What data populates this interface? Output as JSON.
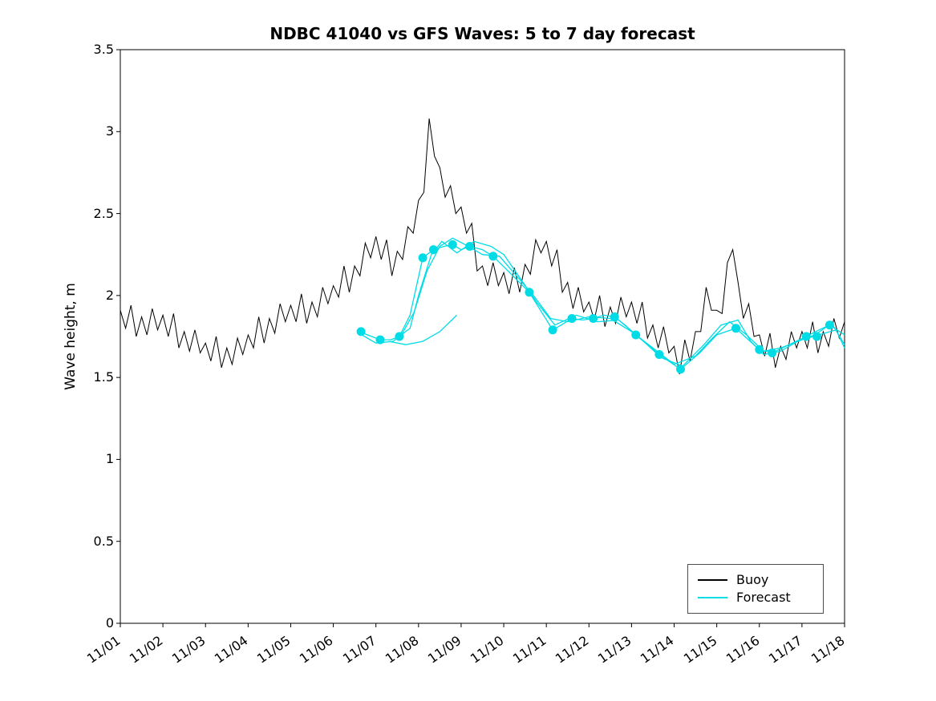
{
  "colors": {
    "buoy": "#000000",
    "forecast": "#00DCE6",
    "background": "#FFFFFF",
    "axes": "#000000"
  },
  "legend": {
    "position": "lower right",
    "items": [
      {
        "label": "Buoy",
        "color": "#000000"
      },
      {
        "label": "Forecast",
        "color": "#00DCE6"
      }
    ]
  },
  "chart_data": {
    "type": "line",
    "title": "NDBC 41040 vs GFS Waves: 5 to 7 day forecast",
    "xlabel": "",
    "ylabel": "Wave height, m",
    "x_unit": "date (MM/DD), days since 11/01",
    "xlim_days": [
      0,
      17
    ],
    "ylim": [
      0,
      3.5
    ],
    "grid": false,
    "xtick_labels": [
      "11/01",
      "11/02",
      "11/03",
      "11/04",
      "11/05",
      "11/06",
      "11/07",
      "11/08",
      "11/09",
      "11/10",
      "11/11",
      "11/12",
      "11/13",
      "11/14",
      "11/15",
      "11/16",
      "11/17",
      "11/18"
    ],
    "ytick_values": [
      0,
      0.5,
      1,
      1.5,
      2,
      2.5,
      3,
      3.5
    ],
    "ytick_labels": [
      "0",
      "0.5",
      "1",
      "1.5",
      "2",
      "2.5",
      "3",
      "3.5"
    ],
    "buoy_series": {
      "name": "Buoy",
      "x_start": 0,
      "dx": 0.125,
      "values": [
        1.91,
        1.8,
        1.94,
        1.75,
        1.87,
        1.76,
        1.92,
        1.79,
        1.88,
        1.75,
        1.89,
        1.68,
        1.78,
        1.66,
        1.79,
        1.65,
        1.71,
        1.6,
        1.75,
        1.56,
        1.68,
        1.58,
        1.74,
        1.64,
        1.76,
        1.68,
        1.87,
        1.71,
        1.86,
        1.77,
        1.95,
        1.84,
        1.94,
        1.84,
        2.01,
        1.83,
        1.96,
        1.87,
        2.05,
        1.95,
        2.06,
        1.99,
        2.18,
        2.02,
        2.18,
        2.12,
        2.32,
        2.23,
        2.36,
        2.22,
        2.34,
        2.12,
        2.27,
        2.22,
        2.42,
        2.38,
        2.58,
        2.63,
        3.08,
        2.85,
        2.78,
        2.6,
        2.67,
        2.5,
        2.54,
        2.38,
        2.44,
        2.15,
        2.18,
        2.06,
        2.2,
        2.06,
        2.14,
        2.01,
        2.17,
        2.02,
        2.19,
        2.13,
        2.34,
        2.26,
        2.33,
        2.18,
        2.28,
        2.02,
        2.08,
        1.92,
        2.05,
        1.9,
        1.96,
        1.85,
        2.0,
        1.81,
        1.93,
        1.83,
        1.99,
        1.87,
        1.96,
        1.83,
        1.96,
        1.74,
        1.82,
        1.68,
        1.81,
        1.65,
        1.69,
        1.52,
        1.73,
        1.6,
        1.78,
        1.78,
        2.05,
        1.91,
        1.91,
        1.89,
        2.2,
        2.28,
        2.08,
        1.86,
        1.95,
        1.75,
        1.76,
        1.63,
        1.77,
        1.56,
        1.69,
        1.61,
        1.78,
        1.68,
        1.78,
        1.68,
        1.84,
        1.65,
        1.78,
        1.69,
        1.86,
        1.74,
        1.84
      ]
    },
    "forecast_runs": [
      {
        "name": "forecast-run-1",
        "points": [
          [
            5.6,
            1.78
          ],
          [
            5.9,
            1.75
          ],
          [
            6.1,
            1.73
          ],
          [
            6.35,
            1.73
          ],
          [
            6.55,
            1.75
          ],
          [
            6.8,
            1.88
          ],
          [
            7.1,
            2.23
          ],
          [
            7.35,
            2.28
          ],
          [
            7.6,
            2.3
          ],
          [
            7.8,
            2.31
          ],
          [
            8.0,
            2.28
          ],
          [
            8.2,
            2.3
          ],
          [
            8.5,
            2.28
          ],
          [
            8.75,
            2.24
          ],
          [
            9.1,
            2.15
          ],
          [
            9.6,
            2.02
          ],
          [
            10.15,
            1.79
          ],
          [
            10.35,
            1.82
          ],
          [
            10.6,
            1.86
          ],
          [
            10.85,
            1.85
          ],
          [
            11.1,
            1.86
          ],
          [
            11.35,
            1.88
          ],
          [
            11.6,
            1.87
          ],
          [
            11.85,
            1.82
          ],
          [
            12.1,
            1.76
          ],
          [
            12.65,
            1.64
          ],
          [
            13.15,
            1.55
          ],
          [
            13.6,
            1.65
          ],
          [
            14.0,
            1.76
          ],
          [
            14.45,
            1.8
          ],
          [
            14.7,
            1.74
          ],
          [
            15.0,
            1.67
          ],
          [
            15.3,
            1.65
          ],
          [
            15.7,
            1.7
          ],
          [
            16.1,
            1.75
          ],
          [
            16.4,
            1.79
          ],
          [
            16.65,
            1.82
          ],
          [
            17.0,
            1.76
          ]
        ]
      },
      {
        "name": "forecast-run-2",
        "points": [
          [
            5.6,
            1.77
          ],
          [
            6.0,
            1.71
          ],
          [
            6.4,
            1.72
          ],
          [
            6.8,
            1.8
          ],
          [
            7.0,
            2.0
          ],
          [
            7.3,
            2.25
          ],
          [
            7.55,
            2.33
          ],
          [
            7.9,
            2.26
          ],
          [
            8.3,
            2.33
          ],
          [
            8.7,
            2.3
          ],
          [
            9.0,
            2.25
          ],
          [
            9.4,
            2.1
          ],
          [
            9.8,
            1.95
          ],
          [
            10.2,
            1.82
          ],
          [
            10.7,
            1.88
          ],
          [
            11.2,
            1.84
          ],
          [
            11.7,
            1.85
          ],
          [
            12.2,
            1.74
          ],
          [
            12.7,
            1.62
          ],
          [
            13.2,
            1.57
          ],
          [
            13.7,
            1.7
          ],
          [
            14.1,
            1.82
          ],
          [
            14.5,
            1.85
          ],
          [
            14.8,
            1.72
          ],
          [
            15.1,
            1.64
          ],
          [
            15.5,
            1.66
          ],
          [
            15.9,
            1.72
          ],
          [
            16.3,
            1.76
          ],
          [
            16.7,
            1.83
          ],
          [
            17.0,
            1.7
          ]
        ]
      },
      {
        "name": "forecast-run-3",
        "points": [
          [
            6.3,
            1.72
          ],
          [
            6.7,
            1.7
          ],
          [
            7.1,
            1.72
          ],
          [
            7.5,
            1.78
          ],
          [
            7.9,
            1.88
          ]
        ]
      },
      {
        "name": "forecast-run-4",
        "points": [
          [
            6.6,
            1.76
          ],
          [
            6.9,
            1.9
          ],
          [
            7.2,
            2.15
          ],
          [
            7.5,
            2.3
          ],
          [
            7.8,
            2.35
          ],
          [
            8.1,
            2.31
          ],
          [
            8.5,
            2.25
          ],
          [
            8.9,
            2.24
          ],
          [
            9.3,
            2.12
          ],
          [
            9.7,
            2.0
          ],
          [
            10.1,
            1.86
          ],
          [
            10.5,
            1.84
          ],
          [
            11.0,
            1.87
          ],
          [
            11.5,
            1.86
          ],
          [
            12.0,
            1.78
          ],
          [
            12.5,
            1.68
          ],
          [
            13.0,
            1.58
          ],
          [
            13.5,
            1.63
          ],
          [
            13.9,
            1.74
          ],
          [
            14.3,
            1.84
          ],
          [
            14.7,
            1.76
          ],
          [
            15.1,
            1.66
          ],
          [
            15.5,
            1.68
          ],
          [
            16.0,
            1.73
          ],
          [
            16.4,
            1.76
          ],
          [
            16.8,
            1.79
          ],
          [
            17.0,
            1.68
          ]
        ]
      }
    ],
    "forecast_markers": [
      [
        5.65,
        1.78
      ],
      [
        6.1,
        1.73
      ],
      [
        6.55,
        1.75
      ],
      [
        7.1,
        2.23
      ],
      [
        7.35,
        2.28
      ],
      [
        7.8,
        2.31
      ],
      [
        8.2,
        2.3
      ],
      [
        8.75,
        2.24
      ],
      [
        9.6,
        2.02
      ],
      [
        10.15,
        1.79
      ],
      [
        10.6,
        1.86
      ],
      [
        11.1,
        1.86
      ],
      [
        11.6,
        1.87
      ],
      [
        12.1,
        1.76
      ],
      [
        12.65,
        1.64
      ],
      [
        13.15,
        1.55
      ],
      [
        14.45,
        1.8
      ],
      [
        15.0,
        1.67
      ],
      [
        15.3,
        1.65
      ],
      [
        16.1,
        1.75
      ],
      [
        16.35,
        1.75
      ],
      [
        16.65,
        1.82
      ]
    ]
  }
}
